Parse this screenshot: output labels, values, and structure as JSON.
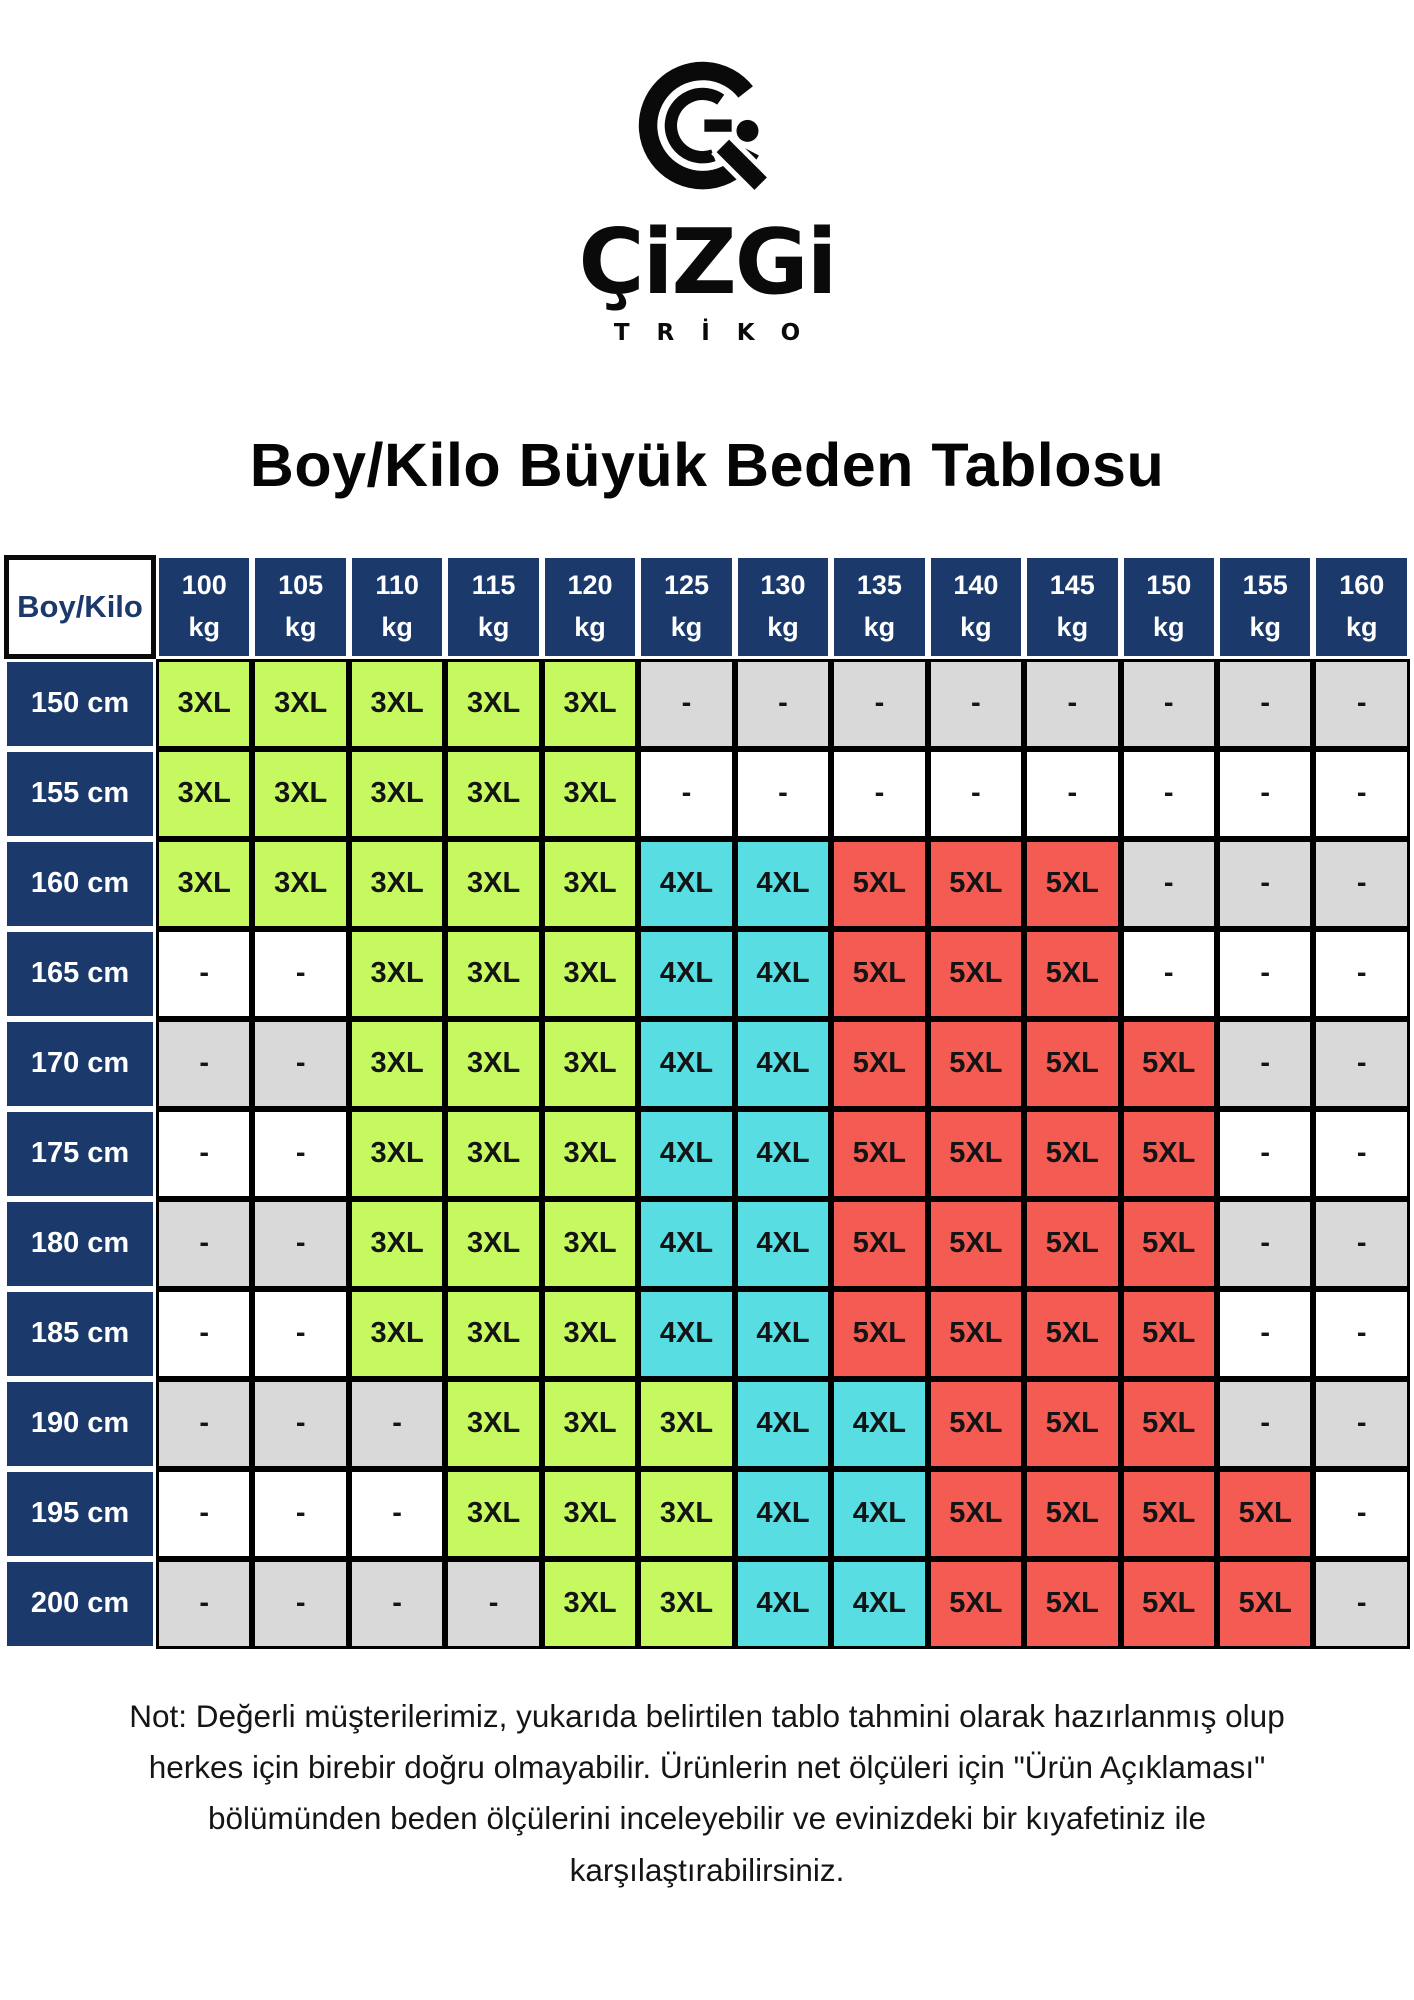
{
  "brand": {
    "wordmark": "ÇiZGi",
    "tagline": "TRİKO"
  },
  "title": "Boy/Kilo Büyük Beden Tablosu",
  "table": {
    "corner_label": "Boy/Kilo",
    "unit": "kg",
    "weights": [
      "100",
      "105",
      "110",
      "115",
      "120",
      "125",
      "130",
      "135",
      "140",
      "145",
      "150",
      "155",
      "160"
    ],
    "rows": [
      {
        "height": "150 cm",
        "cells": [
          "3XL",
          "3XL",
          "3XL",
          "3XL",
          "3XL",
          "-",
          "-",
          "-",
          "-",
          "-",
          "-",
          "-",
          "-"
        ]
      },
      {
        "height": "155 cm",
        "cells": [
          "3XL",
          "3XL",
          "3XL",
          "3XL",
          "3XL",
          "-",
          "-",
          "-",
          "-",
          "-",
          "-",
          "-",
          "-"
        ]
      },
      {
        "height": "160 cm",
        "cells": [
          "3XL",
          "3XL",
          "3XL",
          "3XL",
          "3XL",
          "4XL",
          "4XL",
          "5XL",
          "5XL",
          "5XL",
          "-",
          "-",
          "-"
        ]
      },
      {
        "height": "165 cm",
        "cells": [
          "-",
          "-",
          "3XL",
          "3XL",
          "3XL",
          "4XL",
          "4XL",
          "5XL",
          "5XL",
          "5XL",
          "-",
          "-",
          "-"
        ]
      },
      {
        "height": "170 cm",
        "cells": [
          "-",
          "-",
          "3XL",
          "3XL",
          "3XL",
          "4XL",
          "4XL",
          "5XL",
          "5XL",
          "5XL",
          "5XL",
          "-",
          "-"
        ]
      },
      {
        "height": "175 cm",
        "cells": [
          "-",
          "-",
          "3XL",
          "3XL",
          "3XL",
          "4XL",
          "4XL",
          "5XL",
          "5XL",
          "5XL",
          "5XL",
          "-",
          "-"
        ]
      },
      {
        "height": "180 cm",
        "cells": [
          "-",
          "-",
          "3XL",
          "3XL",
          "3XL",
          "4XL",
          "4XL",
          "5XL",
          "5XL",
          "5XL",
          "5XL",
          "-",
          "-"
        ]
      },
      {
        "height": "185 cm",
        "cells": [
          "-",
          "-",
          "3XL",
          "3XL",
          "3XL",
          "4XL",
          "4XL",
          "5XL",
          "5XL",
          "5XL",
          "5XL",
          "-",
          "-"
        ]
      },
      {
        "height": "190 cm",
        "cells": [
          "-",
          "-",
          "-",
          "3XL",
          "3XL",
          "3XL",
          "4XL",
          "4XL",
          "5XL",
          "5XL",
          "5XL",
          "-",
          "-"
        ]
      },
      {
        "height": "195 cm",
        "cells": [
          "-",
          "-",
          "-",
          "3XL",
          "3XL",
          "3XL",
          "4XL",
          "4XL",
          "5XL",
          "5XL",
          "5XL",
          "5XL",
          "-"
        ]
      },
      {
        "height": "200 cm",
        "cells": [
          "-",
          "-",
          "-",
          "-",
          "3XL",
          "3XL",
          "4XL",
          "4XL",
          "5XL",
          "5XL",
          "5XL",
          "5XL",
          "-"
        ]
      }
    ]
  },
  "colors": {
    "header_navy": "#1b3a6b",
    "size_3xl": "#c6f95f",
    "size_4xl": "#57dde2",
    "size_5xl": "#f45b52",
    "dash_gray": "#d9d9d9",
    "dash_white": "#ffffff"
  },
  "note": "Not: Değerli müşterilerimiz, yukarıda belirtilen tablo tahmini olarak hazırlanmış olup\nherkes için birebir doğru olmayabilir. Ürünlerin net ölçüleri için \"Ürün Açıklaması\"\nbölümünden beden ölçülerini inceleyebilir ve evinizdeki bir kıyafetiniz ile\nkarşılaştırabilirsiniz."
}
